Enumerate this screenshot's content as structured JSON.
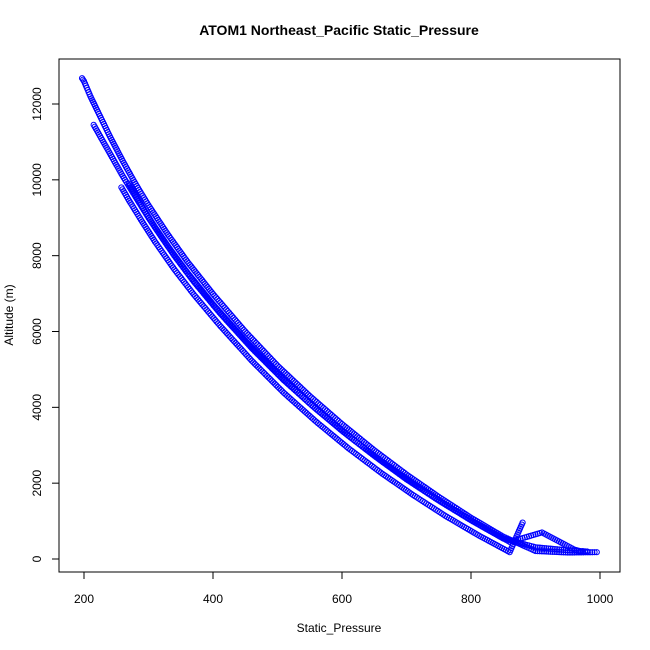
{
  "chart_data": {
    "type": "scatter",
    "title": "ATOM1 Northeast_Pacific Static_Pressure",
    "xlabel": "Static_Pressure",
    "ylabel": "Altitude (m)",
    "xlim": [
      195,
      1000
    ],
    "ylim": [
      0,
      12700
    ],
    "x_ticks": [
      200,
      400,
      600,
      800,
      1000
    ],
    "y_ticks": [
      0,
      2000,
      4000,
      6000,
      8000,
      10000,
      12000
    ],
    "marker": "open-circle",
    "color": "#0000ff",
    "grid": false,
    "legend": "none",
    "series": [
      {
        "x": [
          197,
          200,
          210,
          220,
          240,
          260,
          280,
          300,
          330,
          360,
          400,
          450,
          500,
          550,
          600,
          650,
          700,
          750,
          800,
          850,
          900,
          950,
          995
        ],
        "y": [
          12680,
          12600,
          12200,
          11850,
          11150,
          10500,
          9890,
          9330,
          8560,
          7850,
          6990,
          6000,
          5100,
          4300,
          3560,
          2870,
          2230,
          1640,
          1090,
          590,
          210,
          170,
          180
        ]
      },
      {
        "x": [
          215,
          220,
          240,
          260,
          280,
          300,
          330,
          360,
          400,
          450,
          500,
          550,
          600,
          650,
          700,
          750,
          800,
          850,
          900,
          950,
          980
        ],
        "y": [
          11450,
          11300,
          10700,
          10100,
          9550,
          9000,
          8250,
          7560,
          6720,
          5760,
          4890,
          4100,
          3380,
          2720,
          2100,
          1540,
          1020,
          540,
          310,
          230,
          200
        ]
      },
      {
        "x": [
          258,
          270,
          290,
          310,
          340,
          370,
          410,
          460,
          510,
          560,
          610,
          660,
          710,
          760,
          810,
          860,
          880
        ],
        "y": [
          9800,
          9450,
          8900,
          8370,
          7640,
          6980,
          6170,
          5230,
          4380,
          3620,
          2920,
          2280,
          1690,
          1140,
          640,
          180,
          960
        ]
      },
      {
        "x": [
          270,
          290,
          310,
          340,
          370,
          410,
          460,
          510,
          560,
          610,
          660,
          710,
          760,
          810,
          860,
          910,
          960,
          970
        ],
        "y": [
          9900,
          9300,
          8750,
          8000,
          7320,
          6500,
          5560,
          4710,
          3950,
          3250,
          2600,
          2000,
          1450,
          930,
          450,
          700,
          250,
          200
        ]
      }
    ]
  }
}
